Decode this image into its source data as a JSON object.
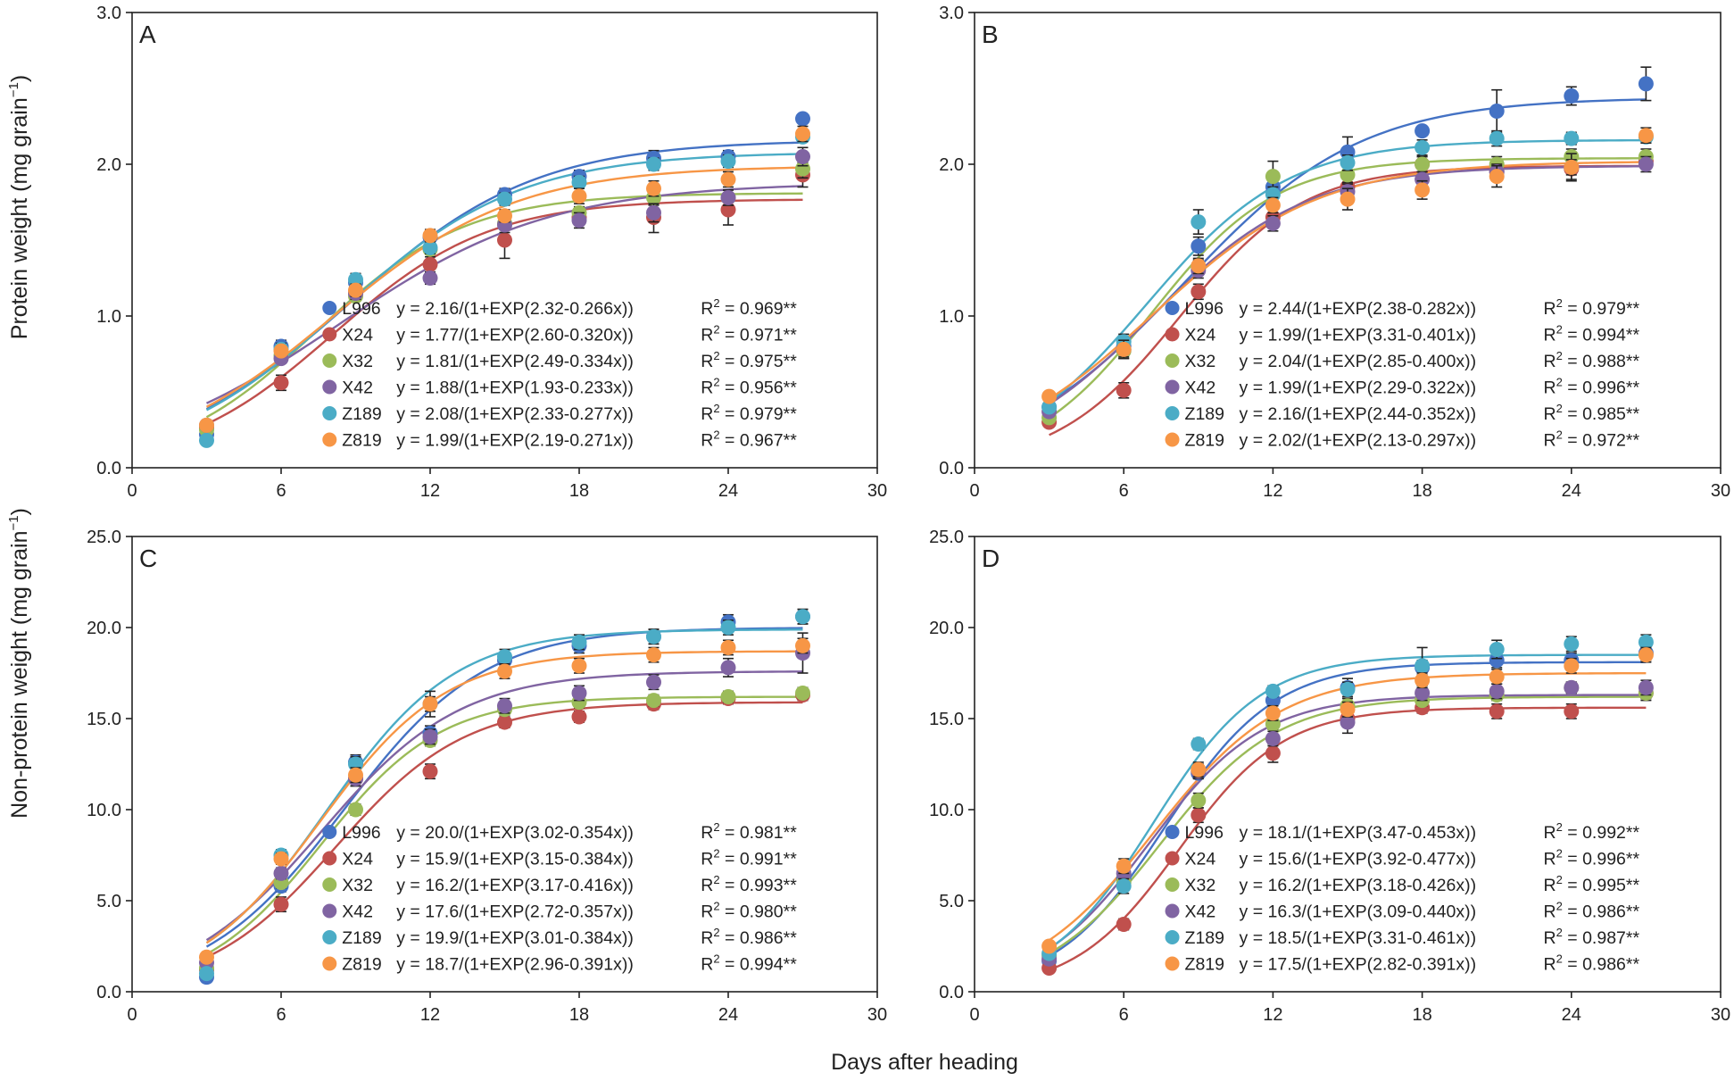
{
  "figure": {
    "common_xlabel": "Days after heading",
    "ylabel_top": "Protein weight (mg grain",
    "ylabel_bottom": "Non-protein weight (mg grain",
    "ylabel_sup": "−1",
    "ylabel_close": ")"
  },
  "colors": {
    "L996": "#4472c4",
    "X24": "#c0504d",
    "X32": "#9bbb59",
    "X42": "#8064a2",
    "Z189": "#4bacc6",
    "Z819": "#f79646"
  },
  "chart_data": [
    {
      "type": "scatter",
      "panel": "A",
      "xlabel": "Days after heading",
      "ylabel": "Protein weight (mg grain−1)",
      "xlim": [
        0,
        30
      ],
      "ylim": [
        0,
        3
      ],
      "xticks": [
        "0",
        "6",
        "12",
        "18",
        "24",
        "30"
      ],
      "yticks": [
        "0.0",
        "1.0",
        "2.0",
        "3.0"
      ],
      "x": [
        3,
        6,
        9,
        12,
        15,
        18,
        21,
        24,
        27
      ],
      "series": [
        {
          "name": "L996",
          "values": [
            0.22,
            0.8,
            1.22,
            1.52,
            1.8,
            1.92,
            2.04,
            2.05,
            2.3
          ],
          "err": [
            0,
            0.04,
            0.04,
            0.04,
            0.04,
            0.04,
            0.05,
            0.04,
            0
          ],
          "params": [
            2.16,
            2.32,
            0.266
          ],
          "equation": "y = 2.16/(1+EXP(2.32-0.266x))",
          "r2": "R² = 0.969**"
        },
        {
          "name": "X24",
          "values": [
            0.26,
            0.56,
            1.15,
            1.34,
            1.5,
            1.65,
            1.65,
            1.7,
            1.93
          ],
          "err": [
            0,
            0.05,
            0.04,
            0.05,
            0.12,
            0.05,
            0.1,
            0.1,
            0.08
          ],
          "params": [
            1.77,
            2.6,
            0.32
          ],
          "equation": "y = 1.77/(1+EXP(2.60-0.320x))",
          "r2": "R² = 0.971**"
        },
        {
          "name": "X32",
          "values": [
            0.25,
            0.74,
            1.13,
            1.44,
            1.61,
            1.68,
            1.78,
            1.78,
            1.97
          ],
          "err": [
            0,
            0.03,
            0.03,
            0.03,
            0.04,
            0.04,
            0.05,
            0.05,
            0.06
          ],
          "params": [
            1.81,
            2.49,
            0.334
          ],
          "equation": "y = 1.81/(1+EXP(2.49-0.334x))",
          "r2": "R² = 0.975**"
        },
        {
          "name": "X42",
          "values": [
            0.28,
            0.72,
            1.15,
            1.25,
            1.6,
            1.63,
            1.68,
            1.78,
            2.05
          ],
          "err": [
            0,
            0.03,
            0.04,
            0.04,
            0.05,
            0.05,
            0.06,
            0.05,
            0.06
          ],
          "params": [
            1.88,
            1.93,
            0.233
          ],
          "equation": "y = 1.88/(1+EXP(1.93-0.233x))",
          "r2": "R² = 0.956**"
        },
        {
          "name": "Z189",
          "values": [
            0.18,
            0.78,
            1.24,
            1.45,
            1.77,
            1.88,
            2.0,
            2.02,
            2.18
          ],
          "err": [
            0,
            0.04,
            0.04,
            0.04,
            0.04,
            0.04,
            0.04,
            0.04,
            0
          ],
          "params": [
            2.08,
            2.33,
            0.277
          ],
          "equation": "y = 2.08/(1+EXP(2.33-0.277x))",
          "r2": "R² = 0.979**"
        },
        {
          "name": "Z819",
          "values": [
            0.28,
            0.77,
            1.17,
            1.53,
            1.66,
            1.79,
            1.84,
            1.9,
            2.2
          ],
          "err": [
            0,
            0.03,
            0.04,
            0.04,
            0.04,
            0.05,
            0.05,
            0.05,
            0.05
          ],
          "params": [
            1.99,
            2.19,
            0.271
          ],
          "equation": "y = 1.99/(1+EXP(2.19-0.271x))",
          "r2": "R² = 0.967**"
        }
      ]
    },
    {
      "type": "scatter",
      "panel": "B",
      "xlabel": "Days after heading",
      "ylabel": "Protein weight (mg grain−1)",
      "xlim": [
        0,
        30
      ],
      "ylim": [
        0,
        3
      ],
      "xticks": [
        "0",
        "6",
        "12",
        "18",
        "24",
        "30"
      ],
      "yticks": [
        "0.0",
        "1.0",
        "2.0",
        "3.0"
      ],
      "x": [
        3,
        6,
        9,
        12,
        15,
        18,
        21,
        24,
        27
      ],
      "series": [
        {
          "name": "L996",
          "values": [
            0.4,
            0.8,
            1.46,
            1.85,
            2.08,
            2.22,
            2.35,
            2.45,
            2.53
          ],
          "err": [
            0,
            0.05,
            0.06,
            0.07,
            0.1,
            0,
            0.14,
            0.06,
            0.11
          ],
          "params": [
            2.44,
            2.38,
            0.282
          ],
          "equation": "y = 2.44/(1+EXP(2.38-0.282x))",
          "r2": "R² = 0.979**"
        },
        {
          "name": "X24",
          "values": [
            0.3,
            0.51,
            1.16,
            1.65,
            1.85,
            2.0,
            1.95,
            1.97,
            2.02
          ],
          "err": [
            0,
            0.05,
            0.05,
            0.06,
            0.06,
            0.05,
            0.06,
            0.07,
            0.05
          ],
          "params": [
            1.99,
            3.31,
            0.401
          ],
          "equation": "y = 1.99/(1+EXP(3.31-0.401x))",
          "r2": "R² = 0.994**"
        },
        {
          "name": "X32",
          "values": [
            0.33,
            0.77,
            1.32,
            1.92,
            1.93,
            2.0,
            2.0,
            2.05,
            2.05
          ],
          "err": [
            0,
            0.05,
            0.05,
            0.1,
            0.05,
            0.05,
            0.05,
            0.05,
            0.05
          ],
          "params": [
            2.04,
            2.85,
            0.4
          ],
          "equation": "y = 2.04/(1+EXP(2.85-0.400x))",
          "r2": "R² = 0.988**"
        },
        {
          "name": "X42",
          "values": [
            0.37,
            0.78,
            1.3,
            1.61,
            1.82,
            1.9,
            1.95,
            1.98,
            2.0
          ],
          "err": [
            0,
            0.05,
            0.05,
            0.05,
            0.05,
            0.05,
            0.05,
            0.05,
            0.05
          ],
          "params": [
            1.99,
            2.29,
            0.322
          ],
          "equation": "y = 1.99/(1+EXP(2.29-0.322x))",
          "r2": "R² = 0.996**"
        },
        {
          "name": "Z189",
          "values": [
            0.4,
            0.83,
            1.62,
            1.8,
            2.01,
            2.11,
            2.17,
            2.17,
            2.18
          ],
          "err": [
            0,
            0.05,
            0.08,
            0.05,
            0.05,
            0.05,
            0.05,
            0.04,
            0.04
          ],
          "params": [
            2.16,
            2.44,
            0.352
          ],
          "equation": "y = 2.16/(1+EXP(2.44-0.352x))",
          "r2": "R² = 0.985**"
        },
        {
          "name": "Z819",
          "values": [
            0.47,
            0.78,
            1.33,
            1.73,
            1.77,
            1.83,
            1.92,
            1.98,
            2.19
          ],
          "err": [
            0,
            0.06,
            0.05,
            0.05,
            0.07,
            0.06,
            0.07,
            0.09,
            0.05
          ],
          "params": [
            2.02,
            2.13,
            0.297
          ],
          "equation": "y = 2.02/(1+EXP(2.13-0.297x))",
          "r2": "R² = 0.972**"
        }
      ]
    },
    {
      "type": "scatter",
      "panel": "C",
      "xlabel": "Days after heading",
      "ylabel": "Non-protein weight (mg grain−1)",
      "xlim": [
        0,
        30
      ],
      "ylim": [
        0,
        25
      ],
      "xticks": [
        "0",
        "6",
        "12",
        "18",
        "24",
        "30"
      ],
      "yticks": [
        "0.0",
        "5.0",
        "10.0",
        "15.0",
        "20.0",
        "25.0"
      ],
      "x": [
        3,
        6,
        9,
        12,
        15,
        18,
        21,
        24,
        27
      ],
      "series": [
        {
          "name": "L996",
          "values": [
            0.8,
            5.8,
            12.6,
            14.2,
            18.2,
            19.0,
            19.5,
            20.3,
            20.6
          ],
          "err": [
            0,
            0.3,
            0.4,
            0.4,
            0.4,
            0.4,
            0.4,
            0.4,
            0.4
          ],
          "params": [
            20.0,
            3.02,
            0.354
          ],
          "equation": "y = 20.0/(1+EXP(3.02-0.354x))",
          "r2": "R² = 0.981**"
        },
        {
          "name": "X24",
          "values": [
            1.2,
            4.8,
            11.7,
            12.1,
            14.8,
            15.1,
            15.8,
            16.1,
            16.3
          ],
          "err": [
            0,
            0.4,
            0.4,
            0.4,
            0.3,
            0.3,
            0.3,
            0.3,
            0.3
          ],
          "params": [
            15.9,
            3.15,
            0.384
          ],
          "equation": "y = 15.9/(1+EXP(3.15-0.384x))",
          "r2": "R² = 0.991**"
        },
        {
          "name": "X32",
          "values": [
            1.3,
            6.0,
            10.0,
            13.8,
            15.5,
            15.9,
            16.0,
            16.2,
            16.4
          ],
          "err": [
            0,
            0.3,
            0.3,
            0.3,
            0.3,
            0.3,
            0.3,
            0.3,
            0.3
          ],
          "params": [
            16.2,
            3.17,
            0.416
          ],
          "equation": "y = 16.2/(1+EXP(3.17-0.416x))",
          "r2": "R² = 0.993**"
        },
        {
          "name": "X42",
          "values": [
            1.6,
            6.5,
            11.7,
            14.0,
            15.7,
            16.4,
            17.0,
            17.8,
            18.6
          ],
          "err": [
            0,
            0.3,
            0.4,
            0.4,
            0.4,
            0.4,
            0.4,
            0.5,
            1.1
          ],
          "params": [
            17.6,
            2.72,
            0.357
          ],
          "equation": "y = 17.6/(1+EXP(2.72-0.357x))",
          "r2": "R² = 0.980**"
        },
        {
          "name": "Z189",
          "values": [
            1.0,
            7.5,
            12.5,
            15.8,
            18.4,
            19.2,
            19.5,
            20.0,
            20.6
          ],
          "err": [
            0,
            0.3,
            0.4,
            0.7,
            0.4,
            0.4,
            0.4,
            0.4,
            0.4
          ],
          "params": [
            19.9,
            3.01,
            0.384
          ],
          "equation": "y = 19.9/(1+EXP(3.01-0.384x))",
          "r2": "R² = 0.986**"
        },
        {
          "name": "Z819",
          "values": [
            1.9,
            7.3,
            11.9,
            15.8,
            17.6,
            17.9,
            18.5,
            18.9,
            19.0
          ],
          "err": [
            0,
            0.3,
            0.4,
            0.4,
            0.4,
            0.4,
            0.4,
            0.4,
            0.4
          ],
          "params": [
            18.7,
            2.96,
            0.391
          ],
          "equation": "y = 18.7/(1+EXP(2.96-0.391x))",
          "r2": "R² = 0.994**"
        }
      ]
    },
    {
      "type": "scatter",
      "panel": "D",
      "xlabel": "Days after heading",
      "ylabel": "Non-protein weight (mg grain−1)",
      "xlim": [
        0,
        30
      ],
      "ylim": [
        0,
        25
      ],
      "xticks": [
        "0",
        "6",
        "12",
        "18",
        "24",
        "30"
      ],
      "yticks": [
        "0.0",
        "5.0",
        "10.0",
        "15.0",
        "20.0",
        "25.0"
      ],
      "x": [
        3,
        6,
        9,
        12,
        15,
        18,
        21,
        24,
        27
      ],
      "series": [
        {
          "name": "L996",
          "values": [
            1.7,
            6.2,
            12.0,
            16.0,
            16.7,
            17.8,
            18.2,
            18.2,
            18.6
          ],
          "err": [
            0,
            0.4,
            0.3,
            0.3,
            0.5,
            0.4,
            0.4,
            0.4,
            0.4
          ],
          "params": [
            18.1,
            3.47,
            0.453
          ],
          "equation": "y = 18.1/(1+EXP(3.47-0.453x))",
          "r2": "R² = 0.992**"
        },
        {
          "name": "X24",
          "values": [
            1.3,
            3.7,
            9.7,
            13.1,
            15.0,
            15.6,
            15.4,
            15.4,
            16.4
          ],
          "err": [
            0,
            0.3,
            0.4,
            0.5,
            0.4,
            0.3,
            0.4,
            0.4,
            0.4
          ],
          "params": [
            15.6,
            3.92,
            0.477
          ],
          "equation": "y = 15.6/(1+EXP(3.92-0.477x))",
          "r2": "R² = 0.996**"
        },
        {
          "name": "X32",
          "values": [
            2.0,
            6.0,
            10.5,
            14.7,
            15.7,
            16.0,
            16.3,
            16.7,
            16.4
          ],
          "err": [
            0,
            0.3,
            0.4,
            0.3,
            0.4,
            0.3,
            0.3,
            0.3,
            0.3
          ],
          "params": [
            16.2,
            3.18,
            0.426
          ],
          "equation": "y = 16.2/(1+EXP(3.18-0.426x))",
          "r2": "R² = 0.995**"
        },
        {
          "name": "X42",
          "values": [
            1.8,
            6.5,
            12.1,
            13.9,
            14.8,
            16.4,
            16.5,
            16.7,
            16.7
          ],
          "err": [
            0,
            0.3,
            0.4,
            0.4,
            0.6,
            0.4,
            0.4,
            0.3,
            0.4
          ],
          "params": [
            16.3,
            3.09,
            0.44
          ],
          "equation": "y = 16.3/(1+EXP(3.09-0.440x))",
          "r2": "R² = 0.986**"
        },
        {
          "name": "Z189",
          "values": [
            2.1,
            5.8,
            13.6,
            16.5,
            16.6,
            17.9,
            18.8,
            19.1,
            19.2
          ],
          "err": [
            0,
            0.4,
            0.3,
            0.3,
            0.4,
            1.0,
            0.5,
            0.4,
            0.4
          ],
          "params": [
            18.5,
            3.31,
            0.461
          ],
          "equation": "y = 18.5/(1+EXP(3.31-0.461x))",
          "r2": "R² = 0.987**"
        },
        {
          "name": "Z819",
          "values": [
            2.5,
            6.9,
            12.2,
            15.3,
            15.5,
            17.1,
            17.3,
            17.9,
            18.5
          ],
          "err": [
            0,
            0.4,
            0.4,
            0.4,
            0.4,
            0.4,
            0.4,
            0.4,
            0.4
          ],
          "params": [
            17.5,
            2.82,
            0.391
          ],
          "equation": "y = 17.5/(1+EXP(2.82-0.391x))",
          "r2": "R² = 0.986**"
        }
      ]
    }
  ]
}
